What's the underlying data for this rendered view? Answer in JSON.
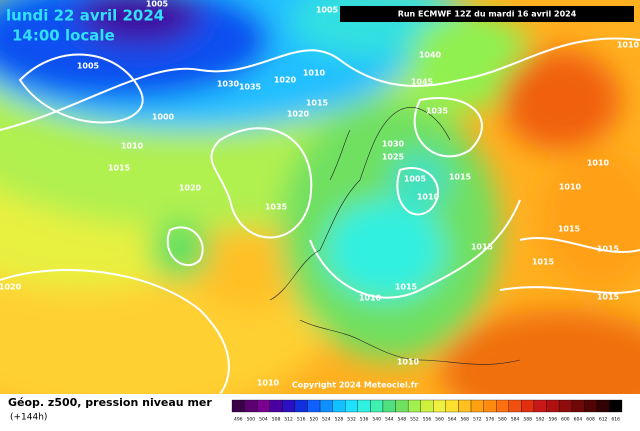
{
  "header": {
    "title": "lundi 22 avril 2024",
    "time": "14:00 locale",
    "run": "Run ECMWF 12Z du mardi 16 avril 2024"
  },
  "map": {
    "isobar_labels": [
      "1005",
      "1005",
      "1005",
      "1030",
      "1035",
      "1020",
      "1010",
      "1015",
      "1020",
      "1040",
      "1045",
      "1035",
      "1000",
      "1010",
      "1015",
      "1020",
      "1035",
      "1030",
      "1025",
      "1005",
      "1010",
      "1015",
      "1015",
      "1010",
      "1015",
      "1010",
      "1010",
      "1020",
      "1010",
      "1010",
      "1015",
      "1015",
      "1015",
      "1015",
      "1010"
    ],
    "copyright": "Copyright 2024 Meteociel.fr"
  },
  "footer": {
    "title": "Géop. z500, pression niveau mer",
    "lead": "(+144h)"
  },
  "scale": {
    "labels": [
      "496",
      "500",
      "504",
      "508",
      "512",
      "516",
      "520",
      "524",
      "528",
      "532",
      "536",
      "540",
      "544",
      "548",
      "552",
      "556",
      "560",
      "564",
      "568",
      "572",
      "576",
      "580",
      "584",
      "588",
      "592",
      "596",
      "600",
      "604",
      "608",
      "612",
      "616"
    ],
    "colors": [
      "#3c0048",
      "#5a0070",
      "#7a0090",
      "#4a00a0",
      "#2a10c0",
      "#1030e0",
      "#1060ff",
      "#1090ff",
      "#10c0ff",
      "#20e0ff",
      "#30f0e0",
      "#40f0b0",
      "#50e080",
      "#70e060",
      "#a0f050",
      "#d0f040",
      "#f0f040",
      "#ffe030",
      "#ffc020",
      "#ffa010",
      "#ff8a10",
      "#ff7010",
      "#f05010",
      "#e03010",
      "#c81818",
      "#b01010",
      "#900c0c",
      "#700808",
      "#500404",
      "#300202",
      "#000000"
    ]
  }
}
